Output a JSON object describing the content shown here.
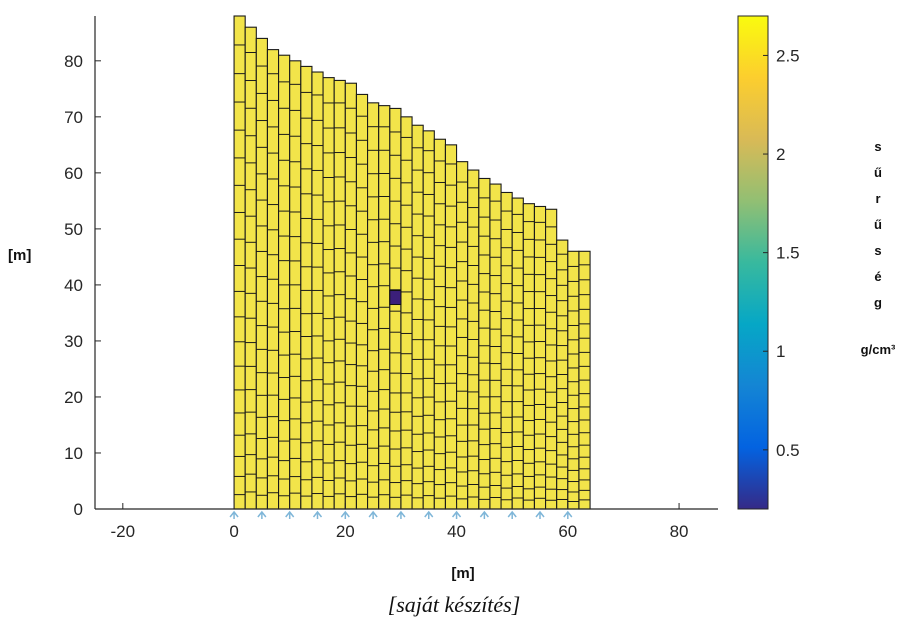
{
  "chart_data": {
    "type": "heatmap",
    "xlabel": "[m]",
    "ylabel": "[m]",
    "xlim": [
      -25,
      87
    ],
    "ylim": [
      0,
      88
    ],
    "xticks": [
      "-20",
      "0",
      "20",
      "40",
      "60",
      "80"
    ],
    "xtick_values": [
      -20,
      0,
      20,
      40,
      60,
      80
    ],
    "yticks": [
      "0",
      "10",
      "20",
      "30",
      "40",
      "50",
      "60",
      "70",
      "80"
    ],
    "ytick_values": [
      0,
      10,
      20,
      30,
      40,
      50,
      60,
      70,
      80
    ],
    "grid_x_range": [
      0,
      62
    ],
    "column_width": 2,
    "top_profile": [
      [
        0,
        88
      ],
      [
        2,
        86
      ],
      [
        4,
        84
      ],
      [
        6,
        82
      ],
      [
        8,
        81
      ],
      [
        10,
        80
      ],
      [
        12,
        79
      ],
      [
        14,
        78
      ],
      [
        16,
        77
      ],
      [
        18,
        76.5
      ],
      [
        20,
        76
      ],
      [
        22,
        74
      ],
      [
        24,
        72.5
      ],
      [
        26,
        72
      ],
      [
        28,
        71.5
      ],
      [
        30,
        70
      ],
      [
        32,
        68.5
      ],
      [
        34,
        67.5
      ],
      [
        36,
        66
      ],
      [
        38,
        65
      ],
      [
        40,
        62
      ],
      [
        42,
        60.5
      ],
      [
        44,
        59
      ],
      [
        46,
        58
      ],
      [
        48,
        56.5
      ],
      [
        50,
        55.5
      ],
      [
        52,
        54.5
      ],
      [
        54,
        54
      ],
      [
        56,
        53.5
      ],
      [
        58,
        48
      ],
      [
        60,
        46
      ],
      [
        62,
        46
      ]
    ],
    "cell_value": 2.65,
    "anomaly": {
      "x": [
        28,
        30
      ],
      "y": [
        36.5,
        39
      ],
      "value": 0.2
    },
    "support_markers_x": [
      0,
      5,
      10,
      15,
      20,
      25,
      30,
      35,
      40,
      45,
      50,
      55,
      60
    ],
    "colorbar": {
      "range": [
        0.2,
        2.7
      ],
      "ticks": [
        "0.5",
        "1",
        "1.5",
        "2",
        "2.5"
      ],
      "tick_values": [
        0.5,
        1.0,
        1.5,
        2.0,
        2.5
      ],
      "title_chars": [
        "s",
        "ű",
        "r",
        "ű",
        "s",
        "é",
        "g"
      ],
      "unit": "g/cm³",
      "colormap": [
        "#352a87",
        "#0363e1",
        "#1485d4",
        "#06a7c6",
        "#38b99e",
        "#92bf73",
        "#d9ba56",
        "#fcce2e",
        "#f9fb0e"
      ]
    }
  },
  "caption": "[saját készítés]",
  "colors": {
    "cell_fill": "#f2e44a",
    "cell_edge": "#1a1a1a",
    "anomaly_fill": "#3b1f7a",
    "axis": "#262626",
    "marker": "#7fb6d8"
  }
}
